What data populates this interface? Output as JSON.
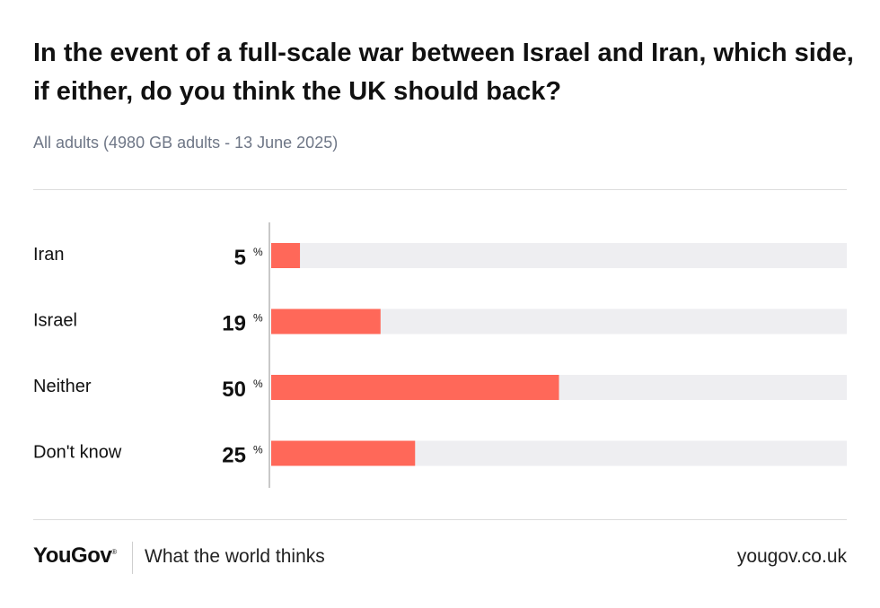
{
  "title": "In the event of a full-scale war between Israel and Iran, which side, if either, do you think the UK should back?",
  "subtitle": "All adults (4980 GB adults - 13 June 2025)",
  "chart_data": {
    "type": "bar",
    "orientation": "horizontal",
    "categories": [
      "Iran",
      "Israel",
      "Neither",
      "Don't know"
    ],
    "values": [
      5,
      19,
      50,
      25
    ],
    "value_suffix": "%",
    "xlim": [
      0,
      100
    ],
    "grid": false,
    "legend": "none",
    "bar_color": "#ff6859",
    "track_color": "#eeeef1"
  },
  "footer": {
    "logo": "YouGov",
    "logo_mark": "®",
    "tagline": "What the world thinks",
    "url": "yougov.co.uk"
  },
  "colors": {
    "accent": "#ff6859",
    "subtitle": "#6e7686",
    "text": "#111111"
  }
}
